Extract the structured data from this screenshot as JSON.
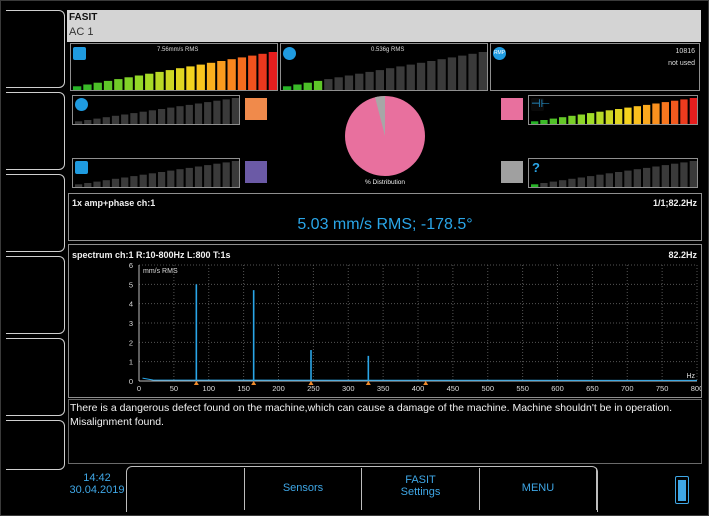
{
  "header": {
    "title": "FASIT",
    "subtitle": "AC 1"
  },
  "meters": {
    "m1": {
      "value": "7.56mm/s RMS",
      "icon": "vibration-icon"
    },
    "m2": {
      "value": "0.536g RMS",
      "icon": "bearing-icon"
    },
    "m3": {
      "value": "10816",
      "status": "not used",
      "icon": "rpm-icon",
      "icon_text": "RMP"
    }
  },
  "distribution": {
    "label": "% Distribution",
    "pink_fraction": 0.96,
    "colors": {
      "pink": "#e8709e",
      "gray": "#a7a7a7"
    }
  },
  "swatches": {
    "orange": "#f08a4b",
    "purple": "#6b5aa6",
    "pink": "#e8709e",
    "gray": "#a0a0a0"
  },
  "amp_phase": {
    "title": "1x amp+phase ch:1",
    "right": "1/1;82.2Hz",
    "value": "5.03 mm/s RMS;  -178.5°"
  },
  "spectrum": {
    "title": "spectrum ch:1 R:10-800Hz L:800 T:1s",
    "right": "82.2Hz",
    "unit_label": "mm/s RMS",
    "x_unit": "Hz"
  },
  "chart_data": {
    "type": "line",
    "title": "",
    "ylabel": "mm/s RMS",
    "xlabel": "Hz",
    "xlim": [
      0,
      800
    ],
    "ylim": [
      0,
      6
    ],
    "x_ticks": [
      0,
      50,
      100,
      150,
      200,
      250,
      300,
      350,
      400,
      450,
      500,
      550,
      600,
      650,
      700,
      750,
      800
    ],
    "y_ticks": [
      0,
      1,
      2,
      3,
      4,
      5,
      6
    ],
    "series": [
      {
        "peaks": [
          {
            "x": 82.2,
            "y": 5.0
          },
          {
            "x": 164.4,
            "y": 4.7
          },
          {
            "x": 246.6,
            "y": 1.6
          },
          {
            "x": 328.8,
            "y": 1.3
          }
        ]
      }
    ],
    "markers_x": [
      82.2,
      164.4,
      246.6,
      328.8,
      411.0
    ],
    "grid": true
  },
  "message": "There is a dangerous defect found on the machine,which can cause a damage of the machine. Machine shouldn't be in operation. Misalignment found.",
  "footer": {
    "time": "14:42",
    "date": "30.04.2019",
    "buttons": [
      "Sensors",
      "FASIT Settings",
      "MENU"
    ]
  }
}
